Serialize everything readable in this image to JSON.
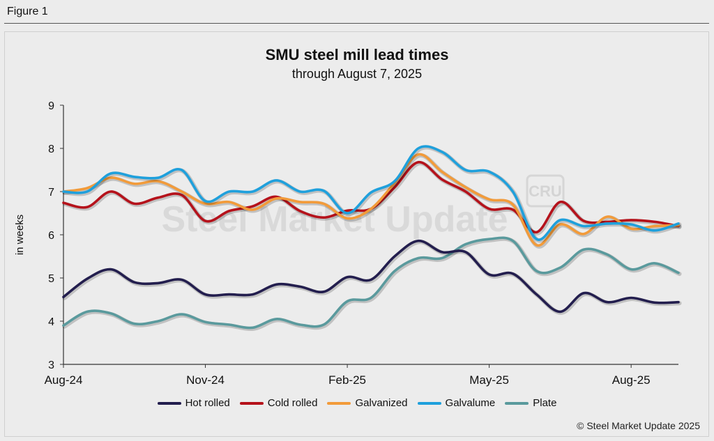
{
  "figure_label": "Figure 1",
  "copyright": "© Steel Market Update 2025",
  "watermark": {
    "text": "Steel Market Update",
    "badge": "CRU"
  },
  "colors": {
    "hot_rolled": "#231e4e",
    "cold_rolled": "#b5121b",
    "galvanized": "#f29b3a",
    "galvalume": "#1fa0dc",
    "plate": "#5a9a9d"
  },
  "chart_data": {
    "type": "line",
    "title": "SMU steel mill lead times",
    "subtitle": "through August 7, 2025",
    "xlabel": "",
    "ylabel": "in weeks",
    "ylim": [
      3,
      9
    ],
    "yticks": [
      3,
      4,
      5,
      6,
      7,
      8,
      9
    ],
    "x_tick_labels": [
      "Aug-24",
      "Nov-24",
      "Feb-25",
      "May-25",
      "Aug-25"
    ],
    "x_tick_index": [
      0,
      6,
      12,
      18,
      24
    ],
    "legend": "bottom",
    "series": [
      {
        "name": "Hot rolled",
        "color_key": "hot_rolled",
        "values": [
          4.56,
          4.98,
          5.2,
          4.9,
          4.88,
          4.96,
          4.62,
          4.62,
          4.62,
          4.85,
          4.8,
          4.68,
          5.02,
          4.96,
          5.5,
          5.86,
          5.6,
          5.6,
          5.08,
          5.1,
          4.62,
          4.22,
          4.65,
          4.44,
          4.54,
          4.43,
          4.44
        ]
      },
      {
        "name": "Cold rolled",
        "color_key": "cold_rolled",
        "values": [
          6.74,
          6.64,
          7.0,
          6.72,
          6.86,
          6.92,
          6.32,
          6.55,
          6.66,
          6.88,
          6.55,
          6.4,
          6.56,
          6.6,
          7.1,
          7.68,
          7.28,
          7.0,
          6.6,
          6.58,
          6.06,
          6.76,
          6.32,
          6.3,
          6.34,
          6.3,
          6.2
        ]
      },
      {
        "name": "Galvanized",
        "color_key": "galvanized",
        "values": [
          7.0,
          7.08,
          7.32,
          7.18,
          7.24,
          7.0,
          6.72,
          6.76,
          6.58,
          6.84,
          6.76,
          6.72,
          6.38,
          6.6,
          7.2,
          7.86,
          7.46,
          7.1,
          6.82,
          6.7,
          5.76,
          6.24,
          6.02,
          6.42,
          6.14,
          6.2,
          6.22
        ]
      },
      {
        "name": "Galvalume",
        "color_key": "galvalume",
        "values": [
          7.0,
          7.0,
          7.42,
          7.34,
          7.32,
          7.5,
          6.78,
          7.0,
          7.0,
          7.26,
          7.0,
          7.02,
          6.5,
          6.98,
          7.24,
          8.0,
          7.92,
          7.5,
          7.46,
          7.0,
          5.9,
          6.34,
          6.2,
          6.26,
          6.24,
          6.1,
          6.26
        ]
      },
      {
        "name": "Plate",
        "color_key": "plate",
        "values": [
          3.9,
          4.22,
          4.18,
          3.94,
          4.0,
          4.16,
          3.98,
          3.92,
          3.85,
          4.05,
          3.92,
          3.92,
          4.46,
          4.54,
          5.16,
          5.46,
          5.46,
          5.78,
          5.9,
          5.86,
          5.16,
          5.24,
          5.66,
          5.54,
          5.2,
          5.34,
          5.12
        ]
      }
    ]
  }
}
